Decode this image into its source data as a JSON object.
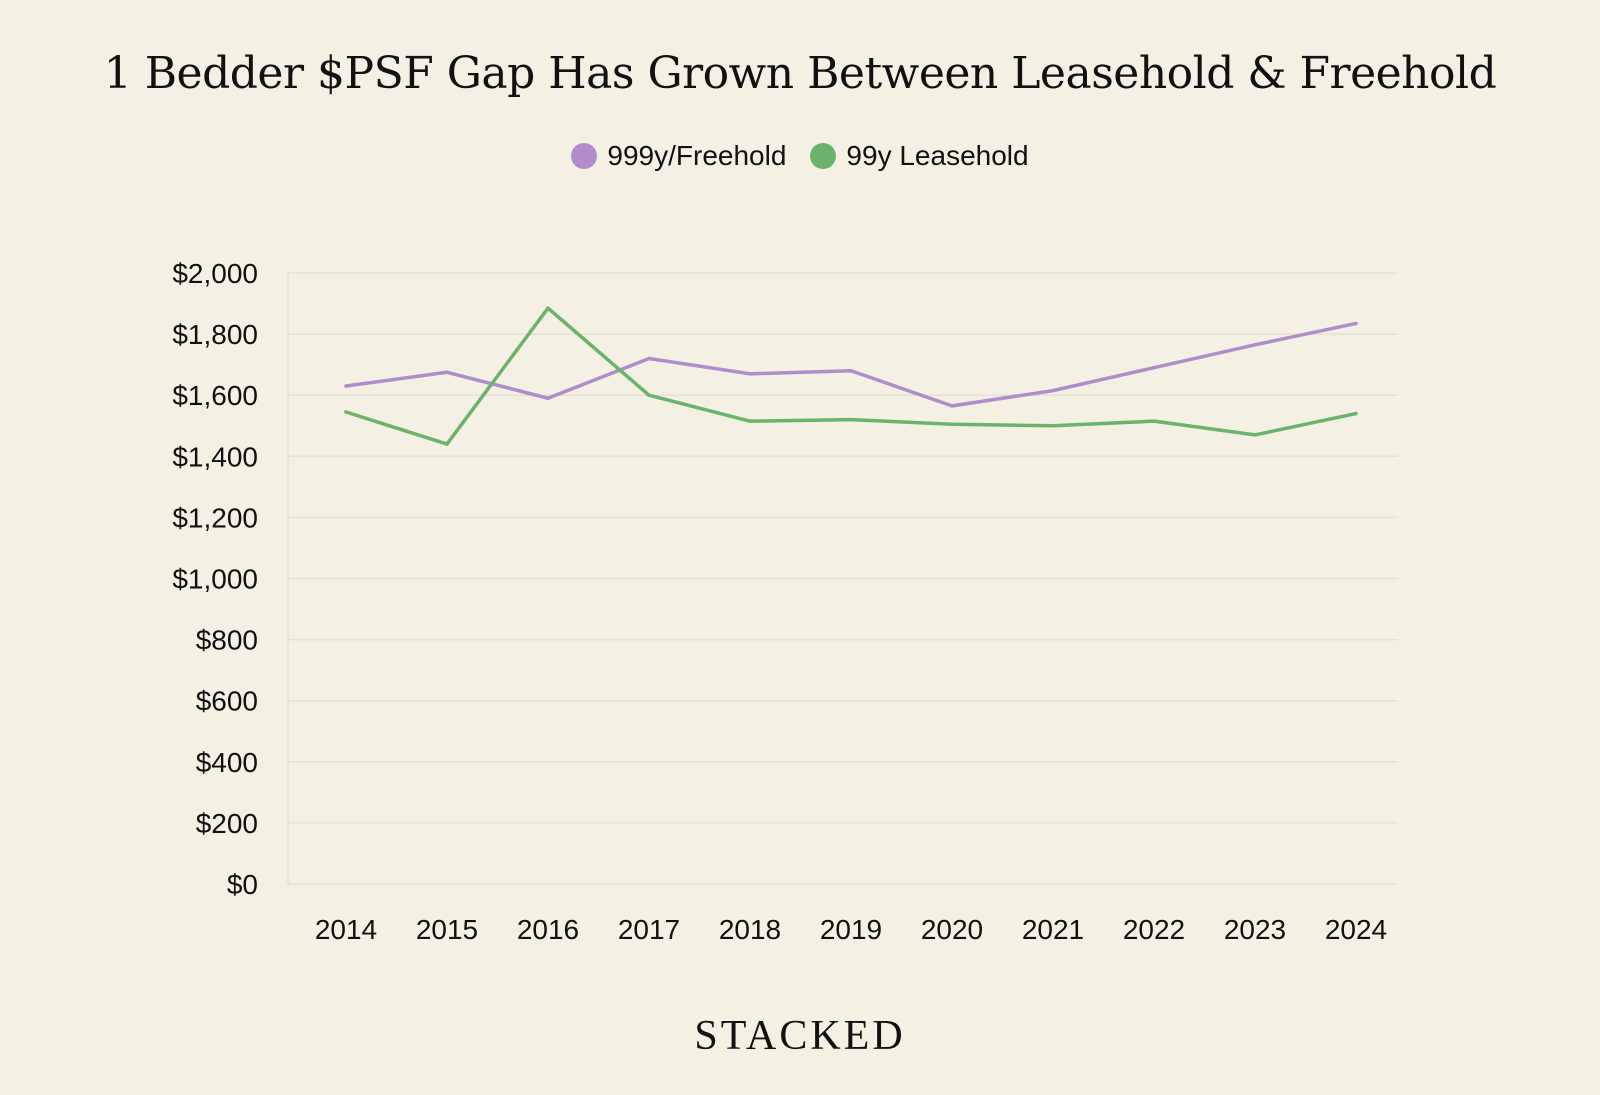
{
  "chart_data": {
    "type": "line",
    "title": "1 Bedder $PSF Gap Has Grown Between Leasehold & Freehold",
    "categories": [
      "2014",
      "2015",
      "2016",
      "2017",
      "2018",
      "2019",
      "2020",
      "2021",
      "2022",
      "2023",
      "2024"
    ],
    "series": [
      {
        "name": "999y/Freehold",
        "color": "#b18bcb",
        "values": [
          1630,
          1675,
          1590,
          1720,
          1670,
          1680,
          1565,
          1615,
          1690,
          1765,
          1835
        ]
      },
      {
        "name": "99y Leasehold",
        "color": "#6bb36d",
        "values": [
          1545,
          1440,
          1885,
          1600,
          1515,
          1520,
          1505,
          1500,
          1515,
          1470,
          1540
        ]
      }
    ],
    "xlabel": "",
    "ylabel": "",
    "ylim": [
      0,
      2000
    ],
    "yticks": [
      0,
      200,
      400,
      600,
      800,
      1000,
      1200,
      1400,
      1600,
      1800,
      2000
    ],
    "ytick_labels": [
      "$0",
      "$200",
      "$400",
      "$600",
      "$800",
      "$1,000",
      "$1,200",
      "$1,400",
      "$1,600",
      "$1,800",
      "$2,000"
    ],
    "grid": true,
    "legend": "top-center"
  },
  "branding": {
    "logo_text": "STACKED"
  }
}
